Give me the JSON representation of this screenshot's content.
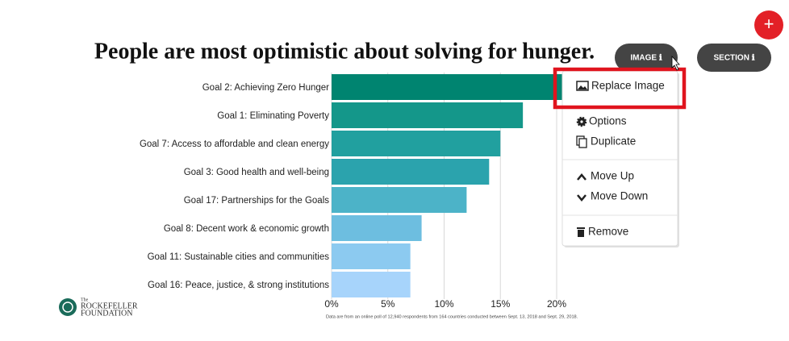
{
  "chart_data": {
    "type": "bar",
    "orientation": "horizontal",
    "title": "People are most optimistic about solving for hunger.",
    "categories": [
      "Goal 2: Achieving Zero Hunger",
      "Goal 1: Eliminating Poverty",
      "Goal 7: Access to affordable and clean energy",
      "Goal 3: Good health and well-being",
      "Goal 17: Partnerships for the Goals",
      "Goal 8: Decent work & economic growth",
      "Goal 11: Sustainable cities and communities",
      "Goal 16: Peace, justice, & strong institutions"
    ],
    "values": [
      22,
      17,
      15,
      14,
      12,
      8,
      7,
      7
    ],
    "colors": [
      "#008470",
      "#14978a",
      "#21a09f",
      "#2ba3ad",
      "#4cb3c8",
      "#6dbee0",
      "#8ccaf0",
      "#a7d4fb"
    ],
    "xlim": [
      0,
      20
    ],
    "xticks": [
      {
        "value": 0,
        "label": "0%"
      },
      {
        "value": 5,
        "label": "5%"
      },
      {
        "value": 10,
        "label": "10%"
      },
      {
        "value": 15,
        "label": "15%"
      },
      {
        "value": 20,
        "label": "20%"
      }
    ],
    "grid": true,
    "footnote": "Data are from an online poll of 12,940 respondents from 164 countries conducted between Sept. 13, 2018 and Sept. 29, 2018."
  },
  "logo": {
    "small": "The",
    "line1": "ROCKEFELLER",
    "line2": "FOUNDATION"
  },
  "toolbar": {
    "add": "+",
    "image": "IMAGE ℹ",
    "section": "SECTION ℹ"
  },
  "menu": {
    "items": [
      "Replace Image",
      "Options",
      "Duplicate",
      "Move Up",
      "Move Down",
      "Remove"
    ]
  }
}
